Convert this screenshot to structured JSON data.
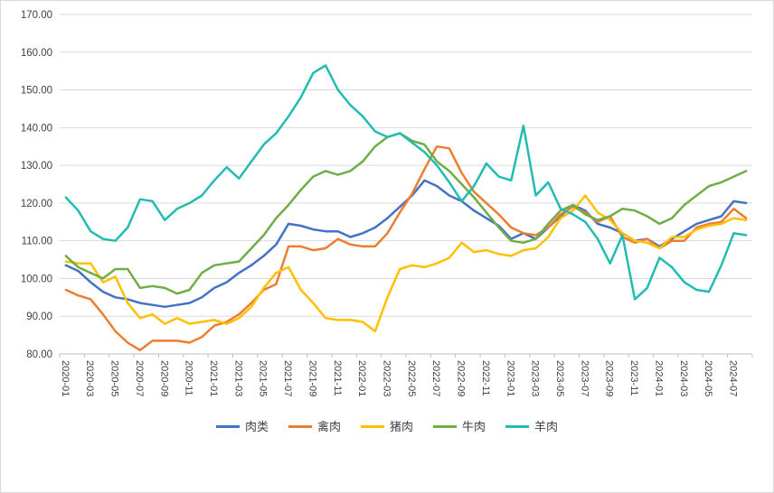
{
  "page": {
    "background": "#ffffff",
    "border_color": "#d9d9d9"
  },
  "chart_data": {
    "type": "line",
    "ylim": [
      80,
      170
    ],
    "ytick_step": 10,
    "ytick_decimals": 2,
    "tick_every": 2,
    "grid": true,
    "legend_position": "bottom",
    "grid_color": "#d9d9d9",
    "axis_color": "#bfbfbf",
    "label_color": "#404040",
    "categories": [
      "2020-01",
      "2020-02",
      "2020-03",
      "2020-04",
      "2020-05",
      "2020-06",
      "2020-07",
      "2020-08",
      "2020-09",
      "2020-10",
      "2020-11",
      "2020-12",
      "2021-01",
      "2021-02",
      "2021-03",
      "2021-04",
      "2021-05",
      "2021-06",
      "2021-07",
      "2021-08",
      "2021-09",
      "2021-10",
      "2021-11",
      "2021-12",
      "2022-01",
      "2022-02",
      "2022-03",
      "2022-04",
      "2022-05",
      "2022-06",
      "2022-07",
      "2022-08",
      "2022-09",
      "2022-10",
      "2022-11",
      "2022-12",
      "2023-01",
      "2023-02",
      "2023-03",
      "2023-04",
      "2023-05",
      "2023-06",
      "2023-07",
      "2023-08",
      "2023-09",
      "2023-10",
      "2023-11",
      "2023-12",
      "2024-01",
      "2024-02",
      "2024-03",
      "2024-04",
      "2024-05",
      "2024-06",
      "2024-07",
      "2024-08"
    ],
    "series": [
      {
        "key": "meat",
        "name": "肉类",
        "color": "#4472C4",
        "values": [
          103.5,
          102,
          99,
          96.5,
          95,
          94.5,
          93.5,
          93,
          92.5,
          93,
          93.5,
          95,
          97.5,
          99,
          101.5,
          103.5,
          106,
          109,
          114.5,
          114,
          113,
          112.5,
          112.5,
          111,
          112,
          113.5,
          116,
          119,
          122,
          126,
          124.5,
          122,
          120.5,
          118,
          116,
          114,
          110.5,
          112,
          110.5,
          113.5,
          116.5,
          119.5,
          118,
          114.5,
          113.5,
          112,
          110,
          110.5,
          108.5,
          110.5,
          112.5,
          114.5,
          115.5,
          116.5,
          120.5,
          120
        ]
      },
      {
        "key": "poultry",
        "name": "禽肉",
        "color": "#ED7D31",
        "values": [
          97,
          95.5,
          94.5,
          90.5,
          86,
          83,
          81,
          83.5,
          83.5,
          83.5,
          83,
          84.5,
          87.5,
          88.5,
          90.5,
          93.5,
          97,
          98.5,
          108.5,
          108.5,
          107.5,
          108,
          110.5,
          109,
          108.5,
          108.5,
          112,
          117.5,
          122.5,
          129,
          135,
          134.5,
          128,
          123,
          120,
          117,
          113.5,
          112,
          111.5,
          113.5,
          117,
          119,
          117.5,
          115,
          116.5,
          111,
          109.5,
          110.5,
          108,
          110,
          110,
          113.5,
          114.5,
          115,
          118.5,
          116
        ]
      },
      {
        "key": "pork",
        "name": "猪肉",
        "color": "#FFC000",
        "values": [
          104.5,
          104,
          104,
          99,
          100.5,
          93.5,
          89.5,
          90.5,
          88,
          89.5,
          88,
          88.5,
          89,
          88,
          89.5,
          92.5,
          97.5,
          101.5,
          103,
          97,
          93.5,
          89.5,
          89,
          89,
          88.5,
          86,
          95,
          102.5,
          103.5,
          103,
          104,
          105.5,
          109.5,
          107,
          107.5,
          106.5,
          106,
          107.5,
          108,
          111,
          116,
          118,
          122,
          117.5,
          115.5,
          112,
          110,
          109.5,
          108,
          111,
          111,
          113,
          114,
          114.5,
          116,
          115.5
        ]
      },
      {
        "key": "beef",
        "name": "牛肉",
        "color": "#70AD47",
        "values": [
          106,
          103,
          101.5,
          100,
          102.5,
          102.5,
          97.5,
          98,
          97.5,
          96,
          97,
          101.5,
          103.5,
          104,
          104.5,
          108,
          111.5,
          116,
          119.5,
          123.5,
          127,
          128.5,
          127.5,
          128.5,
          131,
          135,
          137.5,
          138.5,
          136.5,
          135.5,
          131,
          128.5,
          125,
          121.5,
          117.5,
          113.5,
          110,
          109.5,
          110.5,
          114.5,
          118,
          119.5,
          117,
          115.5,
          116.5,
          118.5,
          118,
          116.5,
          114.5,
          116,
          119.5,
          122,
          124.5,
          125.5,
          127,
          128.5
        ]
      },
      {
        "key": "mutton",
        "name": "羊肉",
        "color": "#22BCB0",
        "values": [
          121.5,
          118,
          112.5,
          110.5,
          110,
          113.5,
          121,
          120.5,
          115.5,
          118.5,
          120,
          122,
          126,
          129.5,
          126.5,
          131,
          135.5,
          138.5,
          143,
          148,
          154.5,
          156.5,
          150,
          146,
          143,
          139,
          137.5,
          138.5,
          136,
          133.5,
          130,
          125.5,
          120.5,
          124.5,
          130.5,
          127,
          126,
          140.5,
          122,
          125.5,
          118.5,
          117,
          115,
          110.5,
          104,
          111.5,
          94.5,
          97.5,
          105.5,
          103,
          99,
          97,
          96.5,
          103.5,
          112,
          111.5
        ]
      }
    ]
  }
}
